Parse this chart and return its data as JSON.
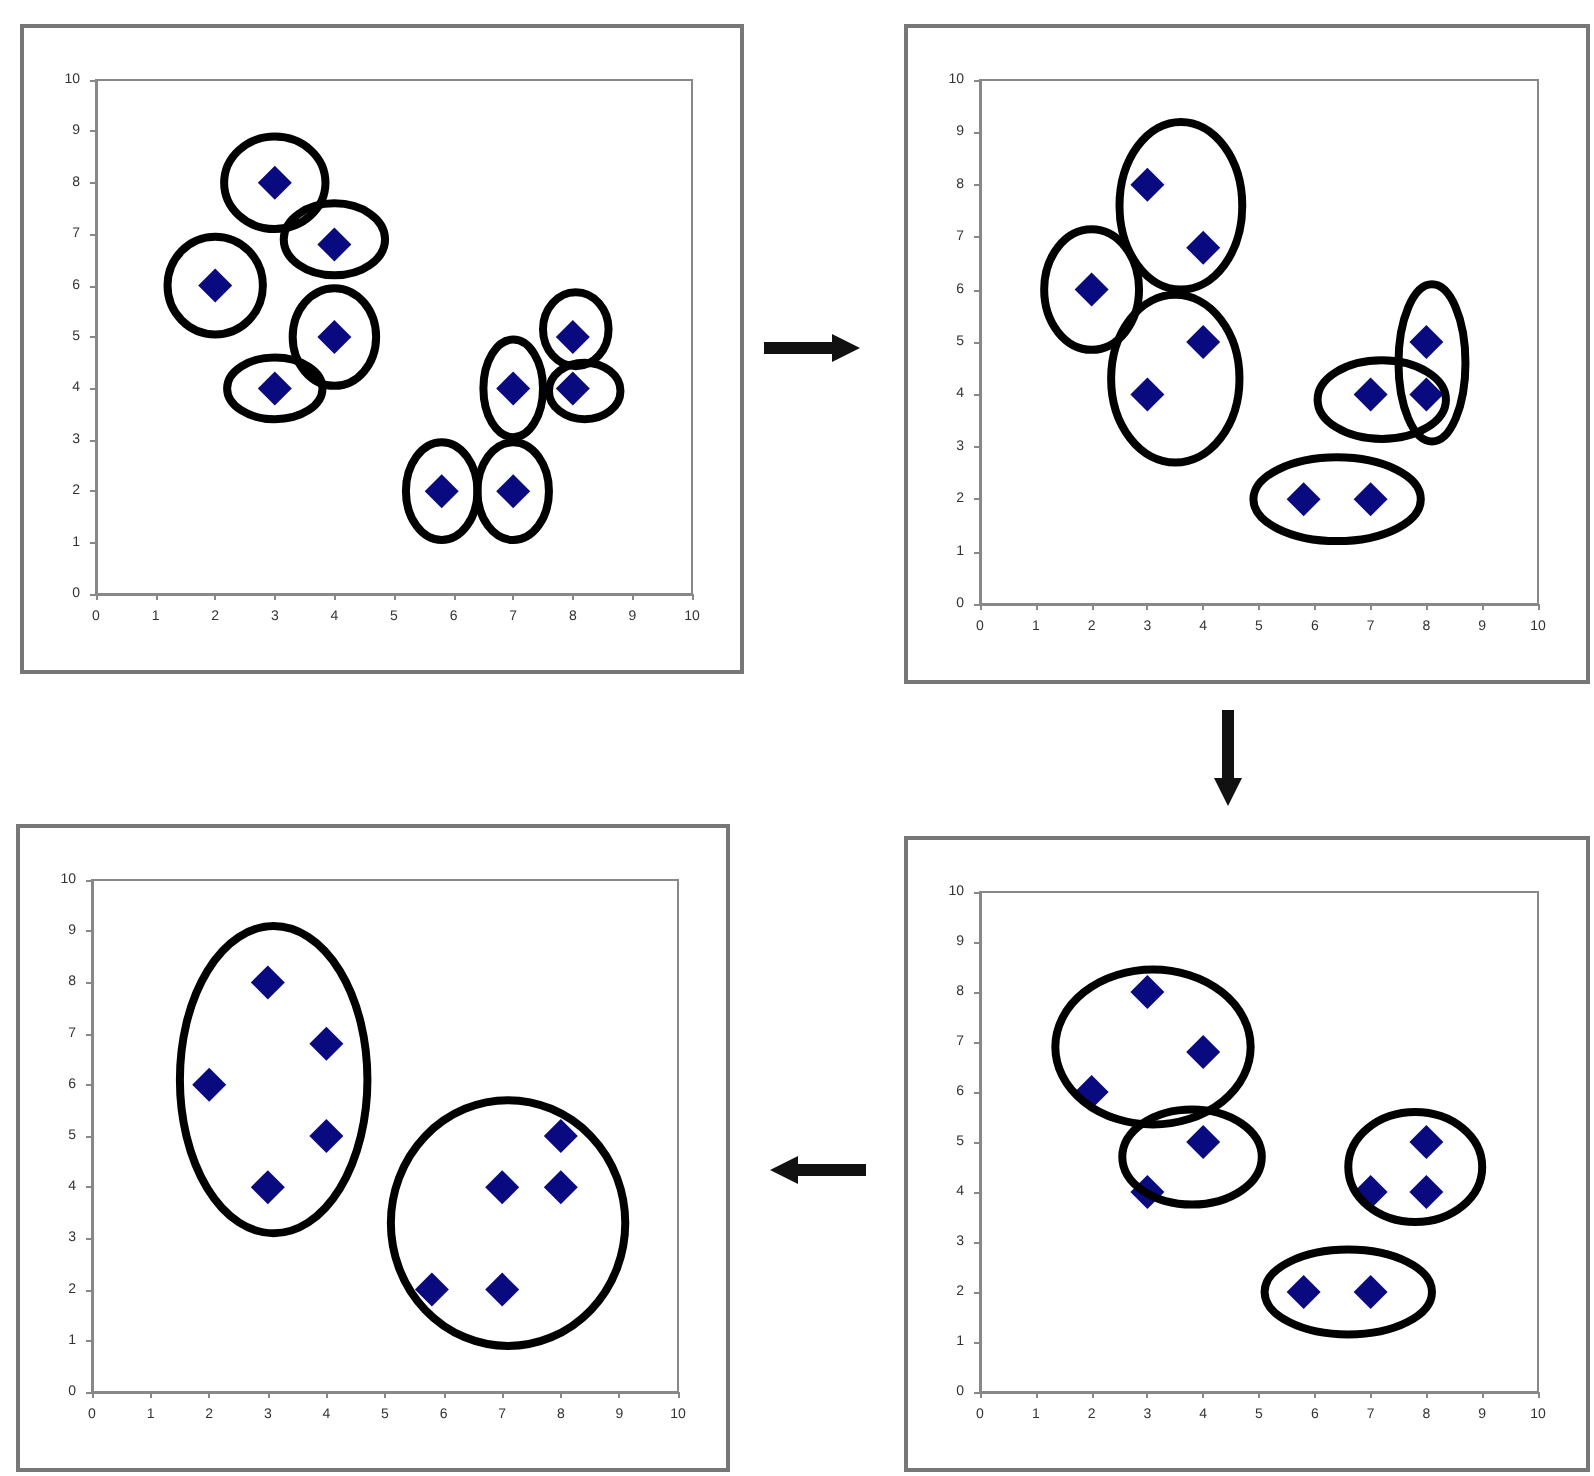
{
  "chart_data": [
    {
      "type": "scatter",
      "x": [
        2,
        3,
        4,
        4,
        3,
        5.8,
        7,
        7,
        8,
        8
      ],
      "values": [
        6,
        8,
        6.8,
        5,
        4,
        2,
        2,
        4,
        5,
        4
      ],
      "color": "#0a0a80",
      "marker": "diamond",
      "xlim": [
        0,
        10
      ],
      "ylim": [
        0,
        10
      ],
      "xticks": [
        0,
        1,
        2,
        3,
        4,
        5,
        6,
        7,
        8,
        9,
        10
      ],
      "yticks": [
        0,
        1,
        2,
        3,
        4,
        5,
        6,
        7,
        8,
        9,
        10
      ]
    },
    {
      "type": "scatter",
      "x": [
        2,
        3,
        4,
        4,
        3,
        5.8,
        7,
        7,
        8,
        8
      ],
      "values": [
        6,
        8,
        6.8,
        5,
        4,
        2,
        2,
        4,
        5,
        4
      ],
      "color": "#0a0a80",
      "marker": "diamond",
      "xlim": [
        0,
        10
      ],
      "ylim": [
        0,
        10
      ],
      "xticks": [
        0,
        1,
        2,
        3,
        4,
        5,
        6,
        7,
        8,
        9,
        10
      ],
      "yticks": [
        0,
        1,
        2,
        3,
        4,
        5,
        6,
        7,
        8,
        9,
        10
      ]
    },
    {
      "type": "scatter",
      "x": [
        2,
        3,
        4,
        4,
        3,
        5.8,
        7,
        7,
        8,
        8
      ],
      "values": [
        6,
        8,
        6.8,
        5,
        4,
        2,
        2,
        4,
        5,
        4
      ],
      "color": "#0a0a80",
      "marker": "diamond",
      "xlim": [
        0,
        10
      ],
      "ylim": [
        0,
        10
      ],
      "xticks": [
        0,
        1,
        2,
        3,
        4,
        5,
        6,
        7,
        8,
        9,
        10
      ],
      "yticks": [
        0,
        1,
        2,
        3,
        4,
        5,
        6,
        7,
        8,
        9,
        10
      ]
    },
    {
      "type": "scatter",
      "x": [
        2,
        3,
        4,
        4,
        3,
        5.8,
        7,
        7,
        8,
        8
      ],
      "values": [
        6,
        8,
        6.8,
        5,
        4,
        2,
        2,
        4,
        5,
        4
      ],
      "color": "#0a0a80",
      "marker": "diamond",
      "xlim": [
        0,
        10
      ],
      "ylim": [
        0,
        10
      ],
      "xticks": [
        0,
        1,
        2,
        3,
        4,
        5,
        6,
        7,
        8,
        9,
        10
      ],
      "yticks": [
        0,
        1,
        2,
        3,
        4,
        5,
        6,
        7,
        8,
        9,
        10
      ]
    }
  ]
}
